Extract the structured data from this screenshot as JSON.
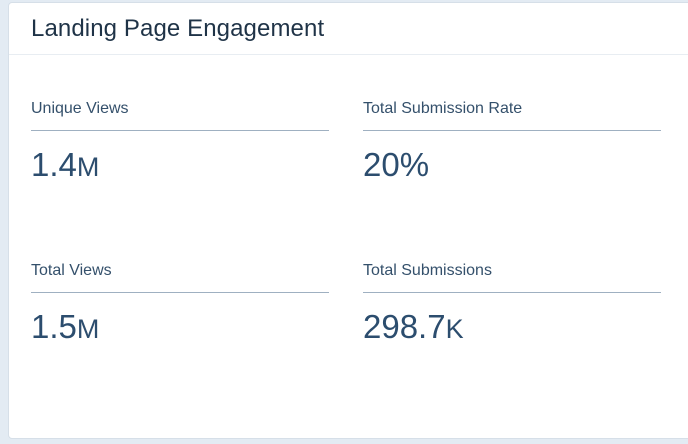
{
  "card": {
    "title": "Landing Page Engagement"
  },
  "metrics": {
    "unique_views": {
      "label": "Unique Views",
      "value": "1.4",
      "suffix": "M"
    },
    "total_submission_rate": {
      "label": "Total Submission Rate",
      "value": "20%",
      "suffix": ""
    },
    "total_views": {
      "label": "Total Views",
      "value": "1.5",
      "suffix": "M"
    },
    "total_submissions": {
      "label": "Total Submissions",
      "value": "298.7",
      "suffix": "K"
    }
  },
  "colors": {
    "background": "#e3ebf3",
    "title": "#1f3347",
    "label": "#34506b",
    "value": "#2c4d6e",
    "rule": "#9fb0c1"
  }
}
